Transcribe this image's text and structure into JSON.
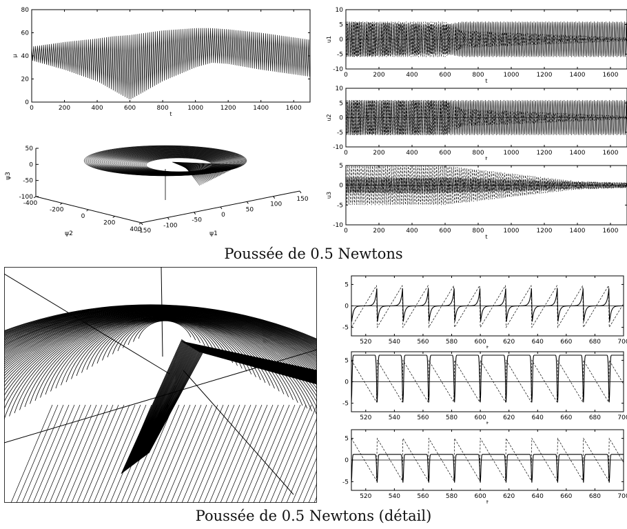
{
  "captions": {
    "top": "Poussée de 0.5 Newtons",
    "bottom": "Poussée de 0.5 Newtons (détail)"
  },
  "chart_data": [
    {
      "id": "mu_vs_t",
      "type": "line",
      "ylabel": "µ",
      "xlabel": "t",
      "xlim": [
        0,
        1700
      ],
      "ylim": [
        0,
        80
      ],
      "xticks": [
        0,
        200,
        400,
        600,
        800,
        1000,
        1200,
        1400,
        1600
      ],
      "yticks": [
        0,
        20,
        40,
        60,
        80
      ],
      "envelope": {
        "t": [
          0,
          200,
          400,
          500,
          600,
          700,
          800,
          1000,
          1100,
          1200,
          1400,
          1600,
          1700
        ],
        "upper": [
          48,
          52,
          55,
          57,
          58,
          60,
          62,
          64,
          64,
          63,
          60,
          56,
          54
        ],
        "lower": [
          36,
          28,
          18,
          10,
          2,
          10,
          18,
          30,
          34,
          33,
          28,
          24,
          22
        ]
      }
    },
    {
      "id": "psi_3d",
      "type": "line3d",
      "xlabel": "ψ1",
      "ylabel": "ψ2",
      "zlabel": "ψ3",
      "xticks": [
        -150,
        -100,
        -50,
        0,
        50,
        100,
        150
      ],
      "yticks": [
        -400,
        -200,
        0,
        200,
        400
      ],
      "zticks": [
        -100,
        -50,
        0,
        50
      ]
    },
    {
      "id": "u1_full",
      "type": "line",
      "ylabel": "u1",
      "xlabel": "t",
      "xlim": [
        0,
        1700
      ],
      "ylim": [
        -10,
        10
      ],
      "xticks": [
        0,
        200,
        400,
        600,
        800,
        1000,
        1200,
        1400,
        1600
      ],
      "yticks": [
        -10,
        -5,
        0,
        5,
        10
      ],
      "amplitude": {
        "t": [
          0,
          600,
          700,
          1700
        ],
        "solid": [
          6,
          5,
          6,
          6
        ],
        "dashed": [
          6,
          6,
          3,
          0.5
        ]
      }
    },
    {
      "id": "u2_full",
      "type": "line",
      "ylabel": "u2",
      "xlabel": "t",
      "xlim": [
        0,
        1700
      ],
      "ylim": [
        -10,
        10
      ],
      "xticks": [
        0,
        200,
        400,
        600,
        800,
        1000,
        1200,
        1400,
        1600
      ],
      "yticks": [
        -10,
        -5,
        0,
        5,
        10
      ],
      "amplitude": {
        "t": [
          0,
          600,
          700,
          1700
        ],
        "solid": [
          6,
          6,
          6,
          6
        ],
        "dashed": [
          6,
          6,
          3,
          0.5
        ]
      }
    },
    {
      "id": "u3_full",
      "type": "line",
      "ylabel": "u3",
      "xlabel": "t",
      "xlim": [
        0,
        1700
      ],
      "ylim": [
        -10,
        5
      ],
      "xticks": [
        0,
        200,
        400,
        600,
        800,
        1000,
        1200,
        1400,
        1600
      ],
      "yticks": [
        -10,
        -5,
        0,
        5
      ],
      "amplitude": {
        "t": [
          0,
          600,
          1000,
          1400,
          1700
        ],
        "solid": [
          2,
          2,
          1.5,
          0.8,
          0.6
        ],
        "dashed": [
          5,
          5,
          3,
          1,
          0.6
        ]
      }
    },
    {
      "id": "psi_detail",
      "type": "line3d",
      "description_visible": false
    },
    {
      "id": "u1_detail",
      "type": "line",
      "ylabel": "u1",
      "xlabel": "t",
      "xlim": [
        510,
        700
      ],
      "ylim": [
        -7,
        7
      ],
      "xticks": [
        520,
        540,
        560,
        580,
        600,
        620,
        640,
        660,
        680,
        700
      ],
      "yticks": [
        -5,
        0,
        5
      ],
      "spike_times": [
        528,
        546,
        565,
        583,
        602,
        620,
        639,
        658,
        677,
        695
      ]
    },
    {
      "id": "u2_detail",
      "type": "line",
      "ylabel": "u2",
      "xlabel": "t",
      "xlim": [
        510,
        700
      ],
      "ylim": [
        -7,
        7
      ],
      "xticks": [
        520,
        540,
        560,
        580,
        600,
        620,
        640,
        660,
        680,
        700
      ],
      "yticks": [
        -5,
        0,
        5
      ],
      "spike_times": [
        528,
        546,
        565,
        583,
        602,
        620,
        639,
        658,
        677,
        695
      ]
    },
    {
      "id": "u3_detail",
      "type": "line",
      "ylabel": "u3",
      "xlabel": "t",
      "xlim": [
        510,
        700
      ],
      "ylim": [
        -7,
        7
      ],
      "xticks": [
        520,
        540,
        560,
        580,
        600,
        620,
        640,
        660,
        680,
        700
      ],
      "yticks": [
        -5,
        0,
        5
      ],
      "spike_times": [
        528,
        546,
        565,
        583,
        602,
        620,
        639,
        658,
        677,
        695
      ]
    }
  ]
}
